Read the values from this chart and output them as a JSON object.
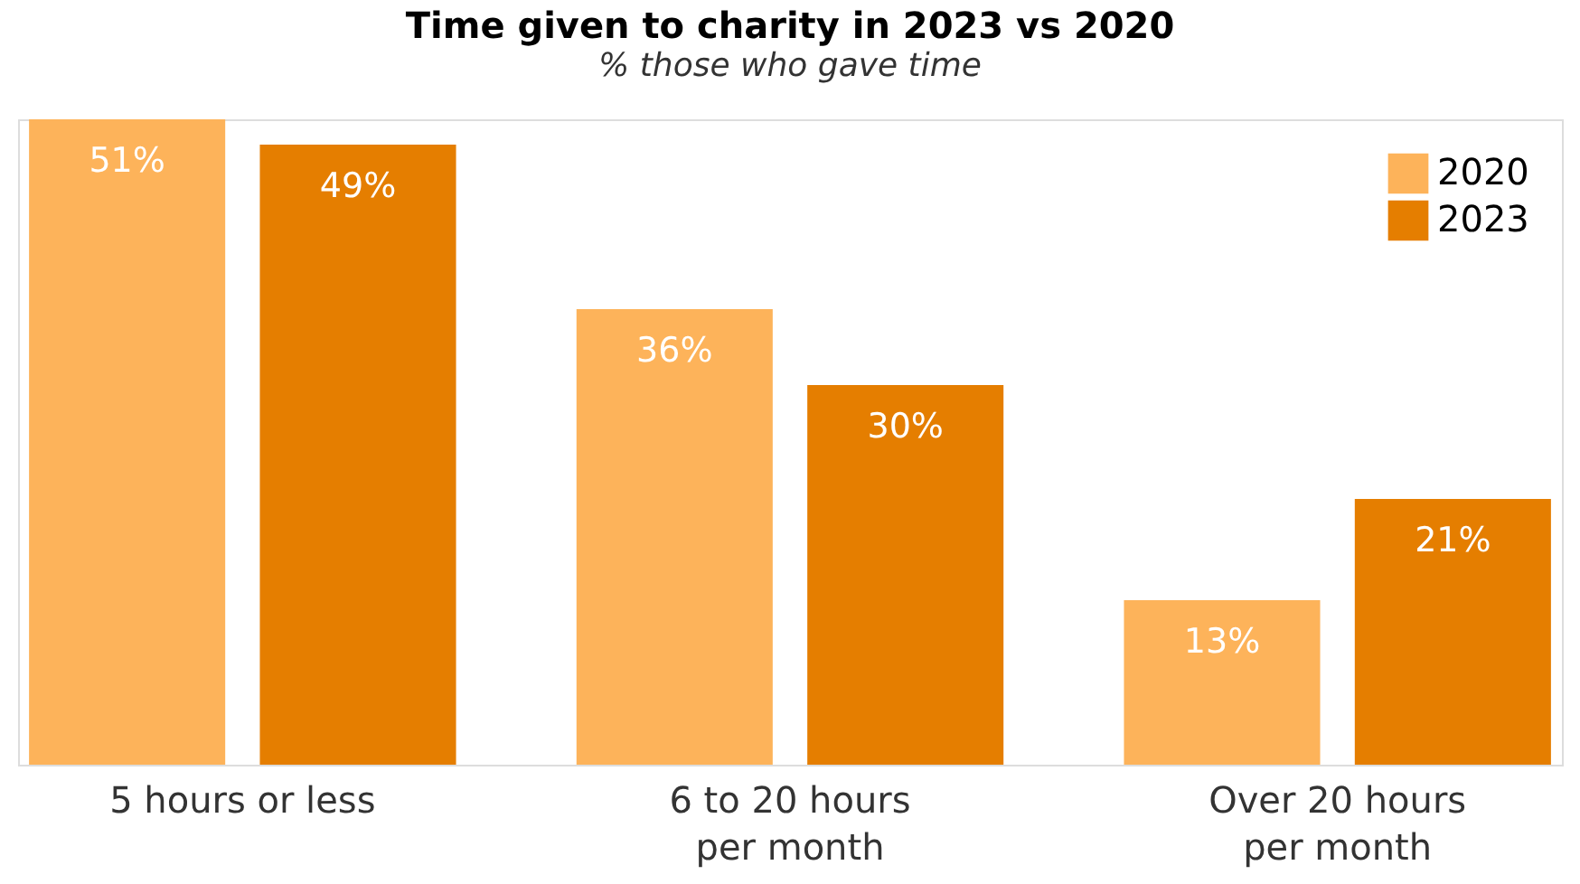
{
  "chart_data": {
    "type": "bar",
    "title": "Time given to charity in 2023 vs 2020",
    "subtitle": "% those who gave time",
    "categories": [
      "5 hours or less",
      "6 to 20 hours\nper month",
      "Over 20 hours\nper month"
    ],
    "series": [
      {
        "name": "2020",
        "color": "#fdb35a",
        "values": [
          51,
          36,
          13
        ],
        "value_labels": [
          "51%",
          "36%",
          "13%"
        ]
      },
      {
        "name": "2023",
        "color": "#e57e00",
        "values": [
          49,
          30,
          21
        ],
        "value_labels": [
          "49%",
          "30%",
          "21%"
        ]
      }
    ],
    "legend": "top right",
    "grid": false
  }
}
